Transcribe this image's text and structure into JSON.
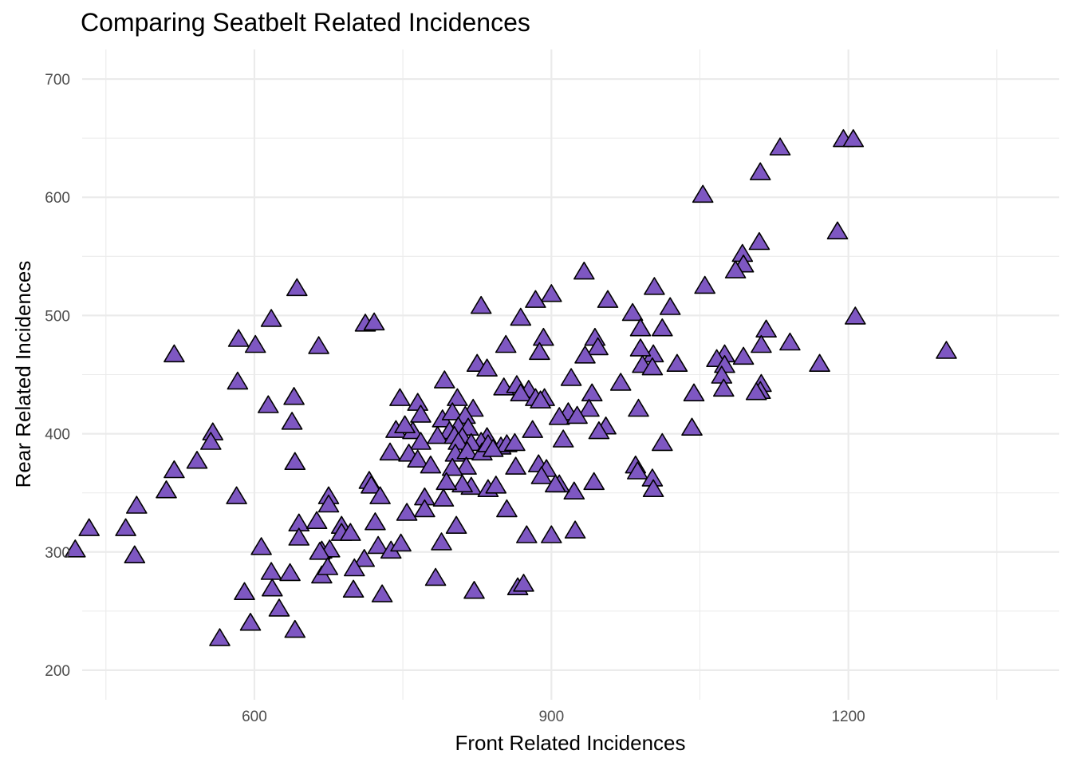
{
  "chart_data": {
    "type": "scatter",
    "title": "Comparing Seatbelt Related Incidences",
    "xlabel": "Front Related Incidences",
    "ylabel": "Rear Related Incidences",
    "xlim": [
      426,
      1413
    ],
    "ylim": [
      175,
      725
    ],
    "x_ticks": [
      600,
      900,
      1200
    ],
    "y_ticks": [
      200,
      300,
      400,
      500,
      600,
      700
    ],
    "grid": true,
    "marker": "triangle",
    "marker_color": "#7E57C2",
    "marker_edge": "#000000",
    "points": [
      [
        1195,
        649
      ],
      [
        1205,
        649
      ],
      [
        1131,
        642
      ],
      [
        1111,
        621
      ],
      [
        1053,
        602
      ],
      [
        1189,
        571
      ],
      [
        1110,
        562
      ],
      [
        1093,
        552
      ],
      [
        1094,
        543
      ],
      [
        1086,
        538
      ],
      [
        933,
        537
      ],
      [
        1055,
        525
      ],
      [
        1004,
        524
      ],
      [
        643,
        523
      ],
      [
        900,
        518
      ],
      [
        1020,
        507
      ],
      [
        829,
        508
      ],
      [
        957,
        513
      ],
      [
        884,
        513
      ],
      [
        1207,
        499
      ],
      [
        617,
        497
      ],
      [
        712,
        493
      ],
      [
        721,
        494
      ],
      [
        869,
        498
      ],
      [
        982,
        502
      ],
      [
        1117,
        488
      ],
      [
        1012,
        489
      ],
      [
        990,
        489
      ],
      [
        944,
        481
      ],
      [
        892,
        481
      ],
      [
        584,
        480
      ],
      [
        601,
        475
      ],
      [
        665,
        474
      ],
      [
        854,
        475
      ],
      [
        947,
        473
      ],
      [
        1141,
        477
      ],
      [
        1112,
        475
      ],
      [
        519,
        467
      ],
      [
        888,
        469
      ],
      [
        934,
        466
      ],
      [
        1003,
        467
      ],
      [
        1075,
        467
      ],
      [
        1299,
        470
      ],
      [
        1171,
        459
      ],
      [
        1094,
        465
      ],
      [
        1067,
        463
      ],
      [
        990,
        472
      ],
      [
        825,
        459
      ],
      [
        1027,
        459
      ],
      [
        992,
        458
      ],
      [
        1075,
        458
      ],
      [
        1002,
        456
      ],
      [
        835,
        455
      ],
      [
        1072,
        449
      ],
      [
        1074,
        438
      ],
      [
        1112,
        442
      ],
      [
        1111,
        436
      ],
      [
        1107,
        435
      ],
      [
        792,
        445
      ],
      [
        920,
        447
      ],
      [
        583,
        444
      ],
      [
        970,
        443
      ],
      [
        852,
        439
      ],
      [
        865,
        441
      ],
      [
        877,
        437
      ],
      [
        869,
        434
      ],
      [
        893,
        430
      ],
      [
        884,
        430
      ],
      [
        889,
        428
      ],
      [
        805,
        430
      ],
      [
        747,
        430
      ],
      [
        941,
        434
      ],
      [
        1044,
        434
      ],
      [
        640,
        431
      ],
      [
        765,
        426
      ],
      [
        821,
        421
      ],
      [
        768,
        416
      ],
      [
        790,
        412
      ],
      [
        800,
        418
      ],
      [
        813,
        415
      ],
      [
        938,
        421
      ],
      [
        988,
        421
      ],
      [
        614,
        424
      ],
      [
        917,
        418
      ],
      [
        908,
        414
      ],
      [
        926,
        415
      ],
      [
        806,
        406
      ],
      [
        816,
        405
      ],
      [
        638,
        410
      ],
      [
        743,
        403
      ],
      [
        760,
        402
      ],
      [
        752,
        407
      ],
      [
        1042,
        405
      ],
      [
        955,
        406
      ],
      [
        948,
        402
      ],
      [
        881,
        403
      ],
      [
        797,
        402
      ],
      [
        785,
        398
      ],
      [
        802,
        398
      ],
      [
        810,
        397
      ],
      [
        835,
        397
      ],
      [
        829,
        393
      ],
      [
        819,
        392
      ],
      [
        806,
        393
      ],
      [
        768,
        393
      ],
      [
        849,
        389
      ],
      [
        855,
        391
      ],
      [
        863,
        392
      ],
      [
        1012,
        392
      ],
      [
        912,
        395
      ],
      [
        558,
        401
      ],
      [
        556,
        393
      ],
      [
        737,
        384
      ],
      [
        756,
        383
      ],
      [
        803,
        383
      ],
      [
        815,
        385
      ],
      [
        830,
        384
      ],
      [
        836,
        391
      ],
      [
        841,
        387
      ],
      [
        765,
        378
      ],
      [
        778,
        373
      ],
      [
        814,
        372
      ],
      [
        864,
        372
      ],
      [
        887,
        374
      ],
      [
        895,
        370
      ],
      [
        890,
        364
      ],
      [
        641,
        376
      ],
      [
        542,
        377
      ],
      [
        519,
        369
      ],
      [
        800,
        371
      ],
      [
        985,
        373
      ],
      [
        987,
        368
      ],
      [
        1002,
        362
      ],
      [
        1003,
        353
      ],
      [
        943,
        359
      ],
      [
        923,
        351
      ],
      [
        908,
        357
      ],
      [
        904,
        357
      ],
      [
        819,
        355
      ],
      [
        836,
        353
      ],
      [
        844,
        356
      ],
      [
        810,
        357
      ],
      [
        794,
        359
      ],
      [
        582,
        347
      ],
      [
        511,
        352
      ],
      [
        716,
        360
      ],
      [
        718,
        356
      ],
      [
        727,
        347
      ],
      [
        772,
        346
      ],
      [
        791,
        345
      ],
      [
        675,
        347
      ],
      [
        675,
        340
      ],
      [
        754,
        333
      ],
      [
        772,
        336
      ],
      [
        855,
        336
      ],
      [
        481,
        339
      ],
      [
        433,
        320
      ],
      [
        470,
        320
      ],
      [
        419,
        302
      ],
      [
        479,
        297
      ],
      [
        645,
        324
      ],
      [
        663,
        326
      ],
      [
        688,
        322
      ],
      [
        688,
        316
      ],
      [
        722,
        325
      ],
      [
        804,
        322
      ],
      [
        645,
        312
      ],
      [
        668,
        301
      ],
      [
        676,
        302
      ],
      [
        697,
        316
      ],
      [
        711,
        294
      ],
      [
        725,
        305
      ],
      [
        738,
        301
      ],
      [
        748,
        307
      ],
      [
        789,
        308
      ],
      [
        875,
        314
      ],
      [
        900,
        314
      ],
      [
        924,
        318
      ],
      [
        666,
        300
      ],
      [
        607,
        304
      ],
      [
        617,
        283
      ],
      [
        636,
        282
      ],
      [
        668,
        280
      ],
      [
        674,
        287
      ],
      [
        701,
        286
      ],
      [
        700,
        268
      ],
      [
        729,
        264
      ],
      [
        783,
        278
      ],
      [
        822,
        267
      ],
      [
        866,
        270
      ],
      [
        872,
        273
      ],
      [
        590,
        266
      ],
      [
        618,
        269
      ],
      [
        625,
        252
      ],
      [
        596,
        240
      ],
      [
        641,
        234
      ],
      [
        565,
        227
      ]
    ]
  }
}
